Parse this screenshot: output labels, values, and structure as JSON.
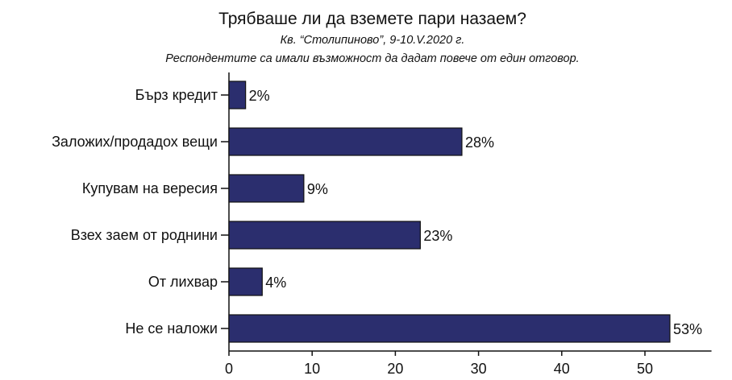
{
  "chart_data": {
    "type": "bar",
    "orientation": "horizontal",
    "title": "Трябваше ли да вземете пари назаем?",
    "subtitles": [
      "Кв. “Столипиново”, 9-10.V.2020 г.",
      "Респондентите са имали възможност да дадат повече от един отговор."
    ],
    "categories": [
      "Бърз кредит",
      "Заложих/продадох вещи",
      "Купувам на вересия",
      "Взех заем от роднини",
      "От лихвар",
      "Не се наложи"
    ],
    "values": [
      2,
      28,
      9,
      23,
      4,
      53
    ],
    "value_labels": [
      "2%",
      "28%",
      "9%",
      "23%",
      "4%",
      "53%"
    ],
    "xlim": [
      0,
      58
    ],
    "xticks": [
      0,
      10,
      20,
      30,
      40,
      50
    ],
    "xlabel": "",
    "ylabel": "",
    "grid": false,
    "bar_color": "#2b2e6e"
  }
}
